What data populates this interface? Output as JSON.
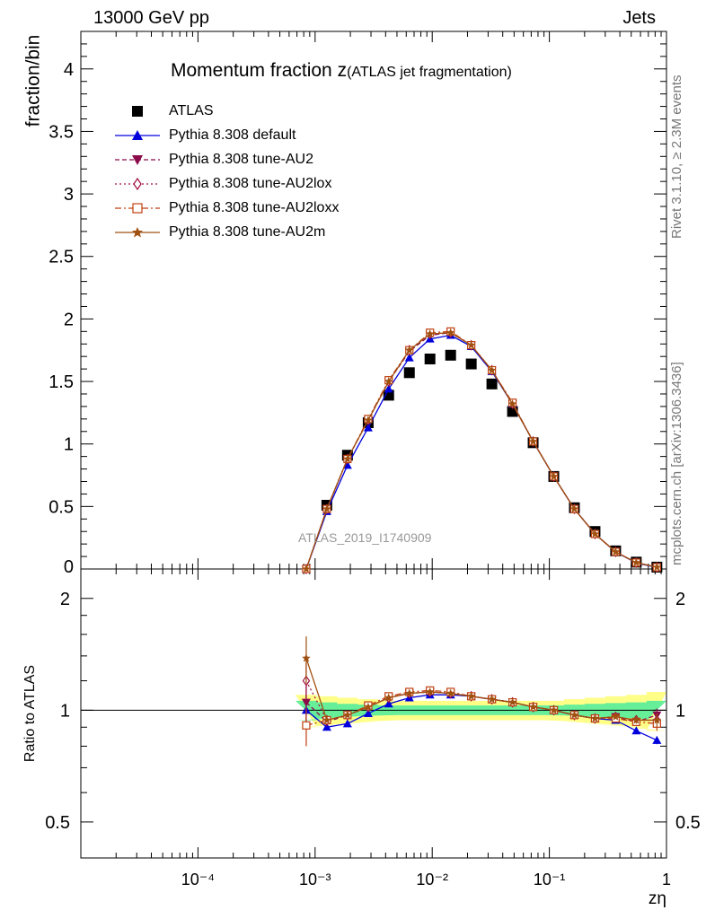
{
  "header": {
    "left": "13000 GeV pp",
    "right": "Jets"
  },
  "side_labels": {
    "rivet": "Rivet 3.1.10, ≥ 2.3M events",
    "mcplots": "mcplots.cern.ch [arXiv:1306.3436]"
  },
  "watermark": "ATLAS_2019_I1740909",
  "colors": {
    "ATLAS": "#000000",
    "default": "#0000dd",
    "AU2": "#8b0a4a",
    "AU2lox": "#a01040",
    "AU2loxx": "#c04010",
    "AU2m": "#a05010",
    "band_green": "#66ee99",
    "band_yellow": "#ffff88"
  },
  "chart_data": [
    {
      "type": "scatter",
      "title_main": "Momentum fraction z",
      "title_sub": "(ATLAS jet fragmentation)",
      "ylabel": "fraction/bin",
      "xscale": "log",
      "xlim": [
        1e-05,
        1
      ],
      "ylim": [
        0,
        4.3
      ],
      "yticks": [
        0,
        0.5,
        1,
        1.5,
        2,
        2.5,
        3,
        3.5,
        4
      ],
      "legend_position": "top-left",
      "x": [
        0.00084,
        0.00126,
        0.00189,
        0.00284,
        0.00425,
        0.00638,
        0.00957,
        0.01436,
        0.02154,
        0.03231,
        0.04847,
        0.07271,
        0.1091,
        0.1636,
        0.2454,
        0.3681,
        0.5522,
        0.8283
      ],
      "series": [
        {
          "name": "ATLAS",
          "key": "ATLAS",
          "marker": "square",
          "values": [
            null,
            0.51,
            0.91,
            1.17,
            1.39,
            1.57,
            1.68,
            1.71,
            1.64,
            1.48,
            1.26,
            1.01,
            0.74,
            0.49,
            0.3,
            0.145,
            0.055,
            0.015
          ]
        },
        {
          "name": "Pythia 8.308 default",
          "key": "default",
          "marker": "triangle-up",
          "dash": "",
          "values": [
            0.0,
            0.46,
            0.83,
            1.13,
            1.44,
            1.69,
            1.84,
            1.87,
            1.78,
            1.58,
            1.32,
            1.02,
            0.74,
            0.48,
            0.28,
            0.136,
            0.048,
            0.012
          ]
        },
        {
          "name": "Pythia 8.308 tune-AU2",
          "key": "AU2",
          "marker": "triangle-down",
          "dash": "5,3",
          "values": [
            0.0,
            0.48,
            0.88,
            1.19,
            1.5,
            1.74,
            1.87,
            1.89,
            1.79,
            1.59,
            1.32,
            1.02,
            0.74,
            0.48,
            0.28,
            0.137,
            0.051,
            0.014
          ]
        },
        {
          "name": "Pythia 8.308 tune-AU2lox",
          "key": "AU2lox",
          "marker": "diamond-open",
          "dash": "2,3",
          "values": [
            0.0,
            0.48,
            0.88,
            1.19,
            1.5,
            1.75,
            1.88,
            1.89,
            1.79,
            1.59,
            1.32,
            1.02,
            0.74,
            0.48,
            0.28,
            0.137,
            0.051,
            0.014
          ]
        },
        {
          "name": "Pythia 8.308 tune-AU2loxx",
          "key": "AU2loxx",
          "marker": "square-open",
          "dash": "7,3,2,3",
          "values": [
            0.0,
            0.48,
            0.88,
            1.2,
            1.51,
            1.75,
            1.89,
            1.9,
            1.79,
            1.59,
            1.33,
            1.02,
            0.74,
            0.48,
            0.28,
            0.137,
            0.051,
            0.014
          ]
        },
        {
          "name": "Pythia 8.308 tune-AU2m",
          "key": "AU2m",
          "marker": "star",
          "dash": "",
          "values": [
            0.0,
            0.48,
            0.88,
            1.19,
            1.5,
            1.75,
            1.88,
            1.89,
            1.79,
            1.59,
            1.32,
            1.02,
            0.74,
            0.48,
            0.28,
            0.137,
            0.051,
            0.014
          ]
        }
      ]
    },
    {
      "type": "line",
      "ylabel": "Ratio to ATLAS",
      "xlabel": "zη",
      "xscale": "log",
      "yscale": "log",
      "xlim": [
        1e-05,
        1
      ],
      "ylim": [
        0.4,
        2.4
      ],
      "yticks": [
        0.5,
        1,
        2
      ],
      "xticks": [
        0.0001,
        0.001,
        0.01,
        0.1,
        1
      ],
      "xtick_labels": [
        "10⁻⁴",
        "10⁻³",
        "10⁻²",
        "10⁻¹",
        "1"
      ],
      "x": [
        0.00084,
        0.00126,
        0.00189,
        0.00284,
        0.00425,
        0.00638,
        0.00957,
        0.01436,
        0.02154,
        0.03231,
        0.04847,
        0.07271,
        0.1091,
        0.1636,
        0.2454,
        0.3681,
        0.5522,
        0.8283
      ],
      "band_green": [
        0.06,
        0.05,
        0.04,
        0.035,
        0.03,
        0.03,
        0.03,
        0.03,
        0.03,
        0.03,
        0.03,
        0.03,
        0.03,
        0.035,
        0.04,
        0.045,
        0.05,
        0.06
      ],
      "band_yellow": [
        0.1,
        0.09,
        0.08,
        0.07,
        0.06,
        0.06,
        0.06,
        0.06,
        0.06,
        0.06,
        0.06,
        0.06,
        0.06,
        0.07,
        0.08,
        0.09,
        0.1,
        0.12
      ],
      "series": [
        {
          "key": "default",
          "marker": "triangle-up",
          "dash": "",
          "values": [
            1.0,
            0.9,
            0.92,
            0.98,
            1.04,
            1.08,
            1.1,
            1.1,
            1.09,
            1.07,
            1.05,
            1.02,
            1.0,
            0.97,
            0.95,
            0.94,
            0.88,
            0.83
          ],
          "err": [
            0.1,
            0,
            0,
            0,
            0,
            0,
            0,
            0,
            0,
            0,
            0,
            0,
            0,
            0,
            0,
            0,
            0,
            0.02
          ]
        },
        {
          "key": "AU2",
          "marker": "triangle-down",
          "dash": "5,3",
          "values": [
            1.05,
            0.93,
            0.97,
            1.02,
            1.08,
            1.11,
            1.12,
            1.11,
            1.09,
            1.07,
            1.05,
            1.02,
            1.0,
            0.97,
            0.95,
            0.96,
            0.93,
            0.97
          ],
          "err": [
            0.12,
            0,
            0,
            0,
            0,
            0,
            0,
            0,
            0,
            0,
            0,
            0,
            0,
            0,
            0,
            0,
            0.02,
            0.04
          ]
        },
        {
          "key": "AU2lox",
          "marker": "diamond-open",
          "dash": "2,3",
          "values": [
            1.2,
            0.94,
            0.97,
            1.02,
            1.08,
            1.11,
            1.12,
            1.11,
            1.09,
            1.07,
            1.05,
            1.02,
            1.0,
            0.97,
            0.95,
            0.96,
            0.94,
            0.94
          ],
          "err": [
            0.14,
            0,
            0,
            0,
            0,
            0,
            0,
            0,
            0,
            0,
            0,
            0,
            0,
            0,
            0,
            0,
            0.02,
            0.04
          ]
        },
        {
          "key": "AU2loxx",
          "marker": "square-open",
          "dash": "7,3,2,3",
          "values": [
            0.91,
            0.94,
            0.97,
            1.03,
            1.09,
            1.12,
            1.13,
            1.12,
            1.09,
            1.07,
            1.05,
            1.02,
            1.0,
            0.97,
            0.95,
            0.95,
            0.93,
            0.92
          ],
          "err": [
            0.11,
            0,
            0,
            0,
            0,
            0,
            0,
            0,
            0,
            0,
            0,
            0,
            0,
            0,
            0,
            0,
            0.02,
            0.04
          ]
        },
        {
          "key": "AU2m",
          "marker": "star",
          "dash": "",
          "values": [
            1.38,
            0.94,
            0.97,
            1.02,
            1.08,
            1.11,
            1.12,
            1.11,
            1.09,
            1.07,
            1.05,
            1.02,
            1.0,
            0.97,
            0.95,
            0.96,
            0.94,
            0.94
          ],
          "err": [
            0.2,
            0,
            0,
            0,
            0,
            0,
            0,
            0,
            0,
            0,
            0,
            0,
            0,
            0,
            0,
            0,
            0.02,
            0.04
          ]
        }
      ]
    }
  ]
}
